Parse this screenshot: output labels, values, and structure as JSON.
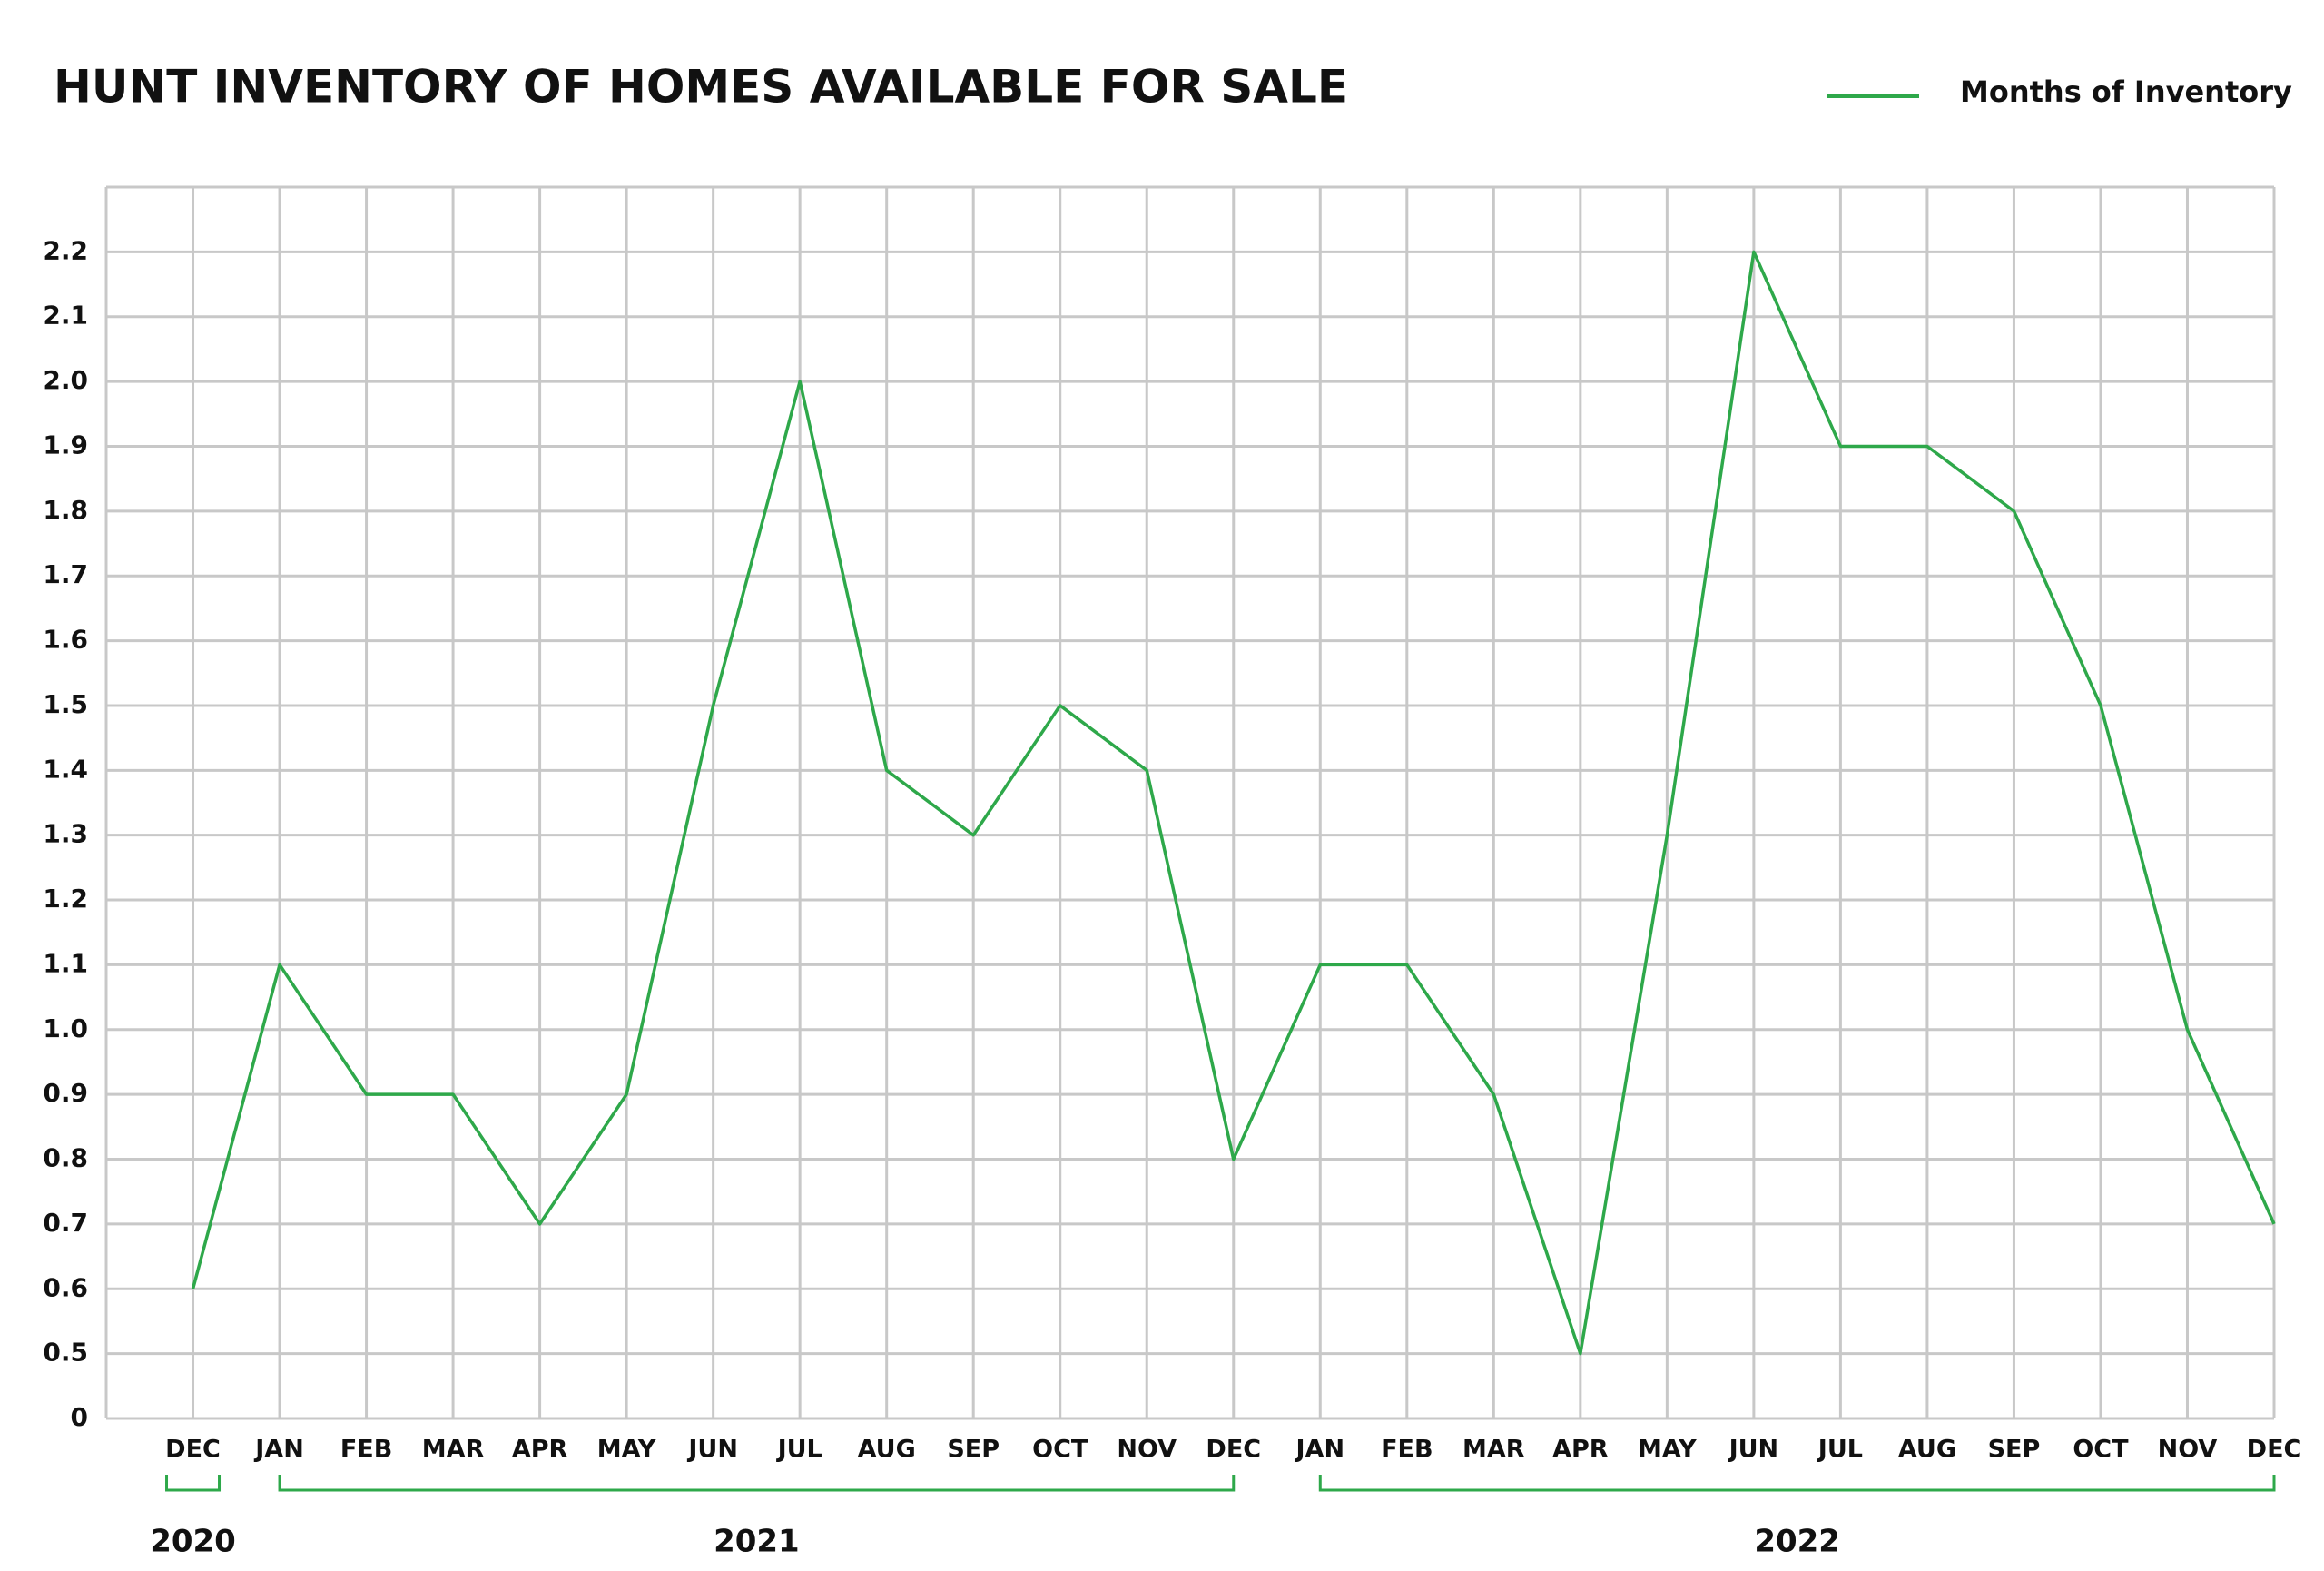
{
  "chart_data": {
    "type": "line",
    "title": "HUNT INVENTORY OF HOMES AVAILABLE FOR SALE",
    "categories": [
      "DEC",
      "JAN",
      "FEB",
      "MAR",
      "APR",
      "MAY",
      "JUN",
      "JUL",
      "AUG",
      "SEP",
      "OCT",
      "NOV",
      "DEC",
      "JAN",
      "FEB",
      "MAR",
      "APR",
      "MAY",
      "JUN",
      "JUL",
      "AUG",
      "SEP",
      "OCT",
      "NOV",
      "DEC"
    ],
    "year_groups": [
      {
        "label": "2020",
        "from": 0,
        "to": 0
      },
      {
        "label": "2021",
        "from": 1,
        "to": 12
      },
      {
        "label": "2022",
        "from": 13,
        "to": 24
      }
    ],
    "series": [
      {
        "name": "Months of Inventory",
        "color": "#2ea84a",
        "values": [
          0.6,
          1.1,
          0.9,
          0.9,
          0.7,
          0.9,
          1.5,
          2.0,
          1.4,
          1.3,
          1.5,
          1.4,
          0.8,
          1.1,
          1.1,
          0.9,
          0.5,
          1.3,
          2.2,
          1.9,
          1.9,
          1.8,
          1.5,
          1.0,
          0.7
        ]
      }
    ],
    "ylim": [
      0.4,
      2.3
    ],
    "axis_break_at_bottom": true,
    "yticks": [
      0,
      0.5,
      0.6,
      0.7,
      0.8,
      0.9,
      {
        "value": 1.0,
        "label": "1.0"
      },
      1.1,
      1.2,
      1.3,
      1.4,
      1.5,
      1.6,
      1.7,
      1.8,
      1.9,
      {
        "value": 2.0,
        "label": "2.0"
      },
      2.1,
      2.2
    ],
    "grid": true,
    "legend": "top-right"
  }
}
